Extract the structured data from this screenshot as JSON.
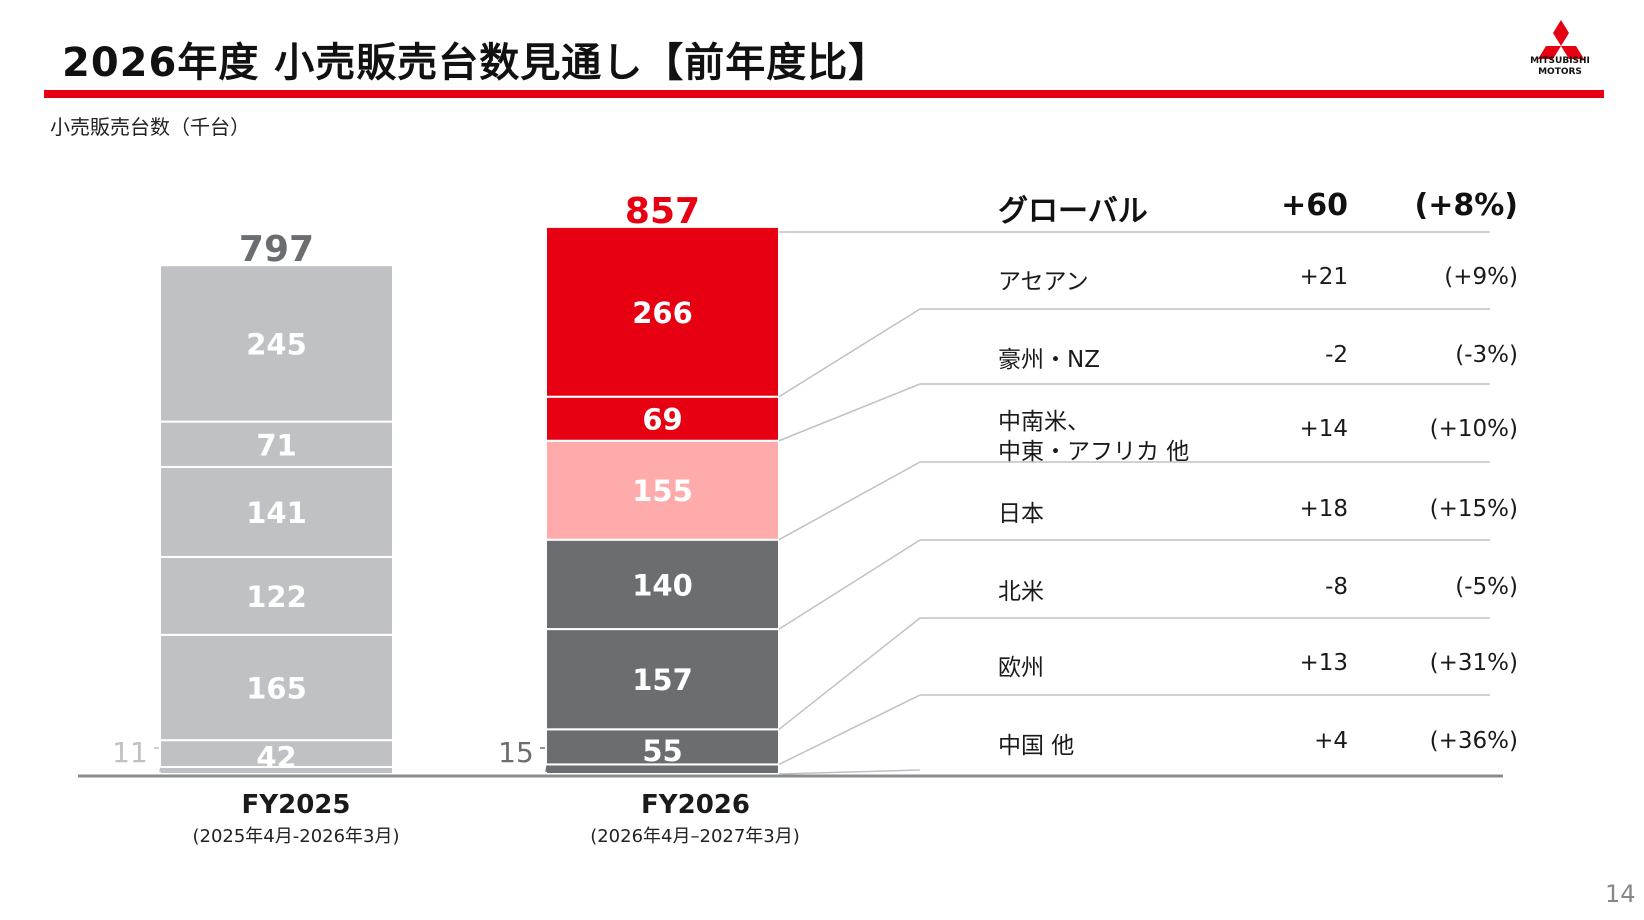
{
  "header": {
    "title": "2026年度 小売販売台数見通し【前年度比】",
    "logo_line1": "MITSUBISHI",
    "logo_line2": "MOTORS",
    "unit_label": "小売販売台数（千台）",
    "page_number": "14"
  },
  "colors": {
    "brand_red": "#e60012",
    "fy2025_gray": "#bfc1c4",
    "dark_gray": "#6b6e71",
    "pink": "#ffabab",
    "text": "#1a1a1a"
  },
  "chart_data": {
    "type": "bar",
    "stacked": true,
    "categories": [
      "FY2025",
      "FY2026"
    ],
    "category_sublabels": [
      "(2025年4月-2026年3月)",
      "(2026年4月–2027年3月)"
    ],
    "totals": [
      797,
      857
    ],
    "series": [
      {
        "name": "中国 他",
        "values": [
          11,
          15
        ]
      },
      {
        "name": "欧州",
        "values": [
          42,
          55
        ]
      },
      {
        "name": "北米",
        "values": [
          165,
          157
        ]
      },
      {
        "name": "日本",
        "values": [
          122,
          140
        ]
      },
      {
        "name": "中南米、中東・アフリカ 他",
        "values": [
          141,
          155
        ]
      },
      {
        "name": "豪州・NZ",
        "values": [
          71,
          69
        ]
      },
      {
        "name": "アセアン",
        "values": [
          245,
          266
        ]
      }
    ],
    "fy2026_colors": [
      "#6b6e71",
      "#6b6e71",
      "#6b6e71",
      "#6b6e71",
      "#ffabab",
      "#e60012",
      "#e60012"
    ],
    "ylim": [
      0,
      857
    ]
  },
  "table": {
    "header": {
      "region": "グローバル",
      "diff": "+60",
      "pct": "(+8%)"
    },
    "rows": [
      {
        "region": "アセアン",
        "diff": "+21",
        "pct": "(+9%)"
      },
      {
        "region": "豪州・NZ",
        "diff": "-2",
        "pct": "(-3%)"
      },
      {
        "region_line1": "中南米、",
        "region_line2": "中東・アフリカ 他",
        "diff": "+14",
        "pct": "(+10%)"
      },
      {
        "region": "日本",
        "diff": "+18",
        "pct": "(+15%)"
      },
      {
        "region": "北米",
        "diff": "-8",
        "pct": "(-5%)"
      },
      {
        "region": "欧州",
        "diff": "+13",
        "pct": "(+31%)"
      },
      {
        "region": "中国 他",
        "diff": "+4",
        "pct": "(+36%)"
      }
    ]
  }
}
